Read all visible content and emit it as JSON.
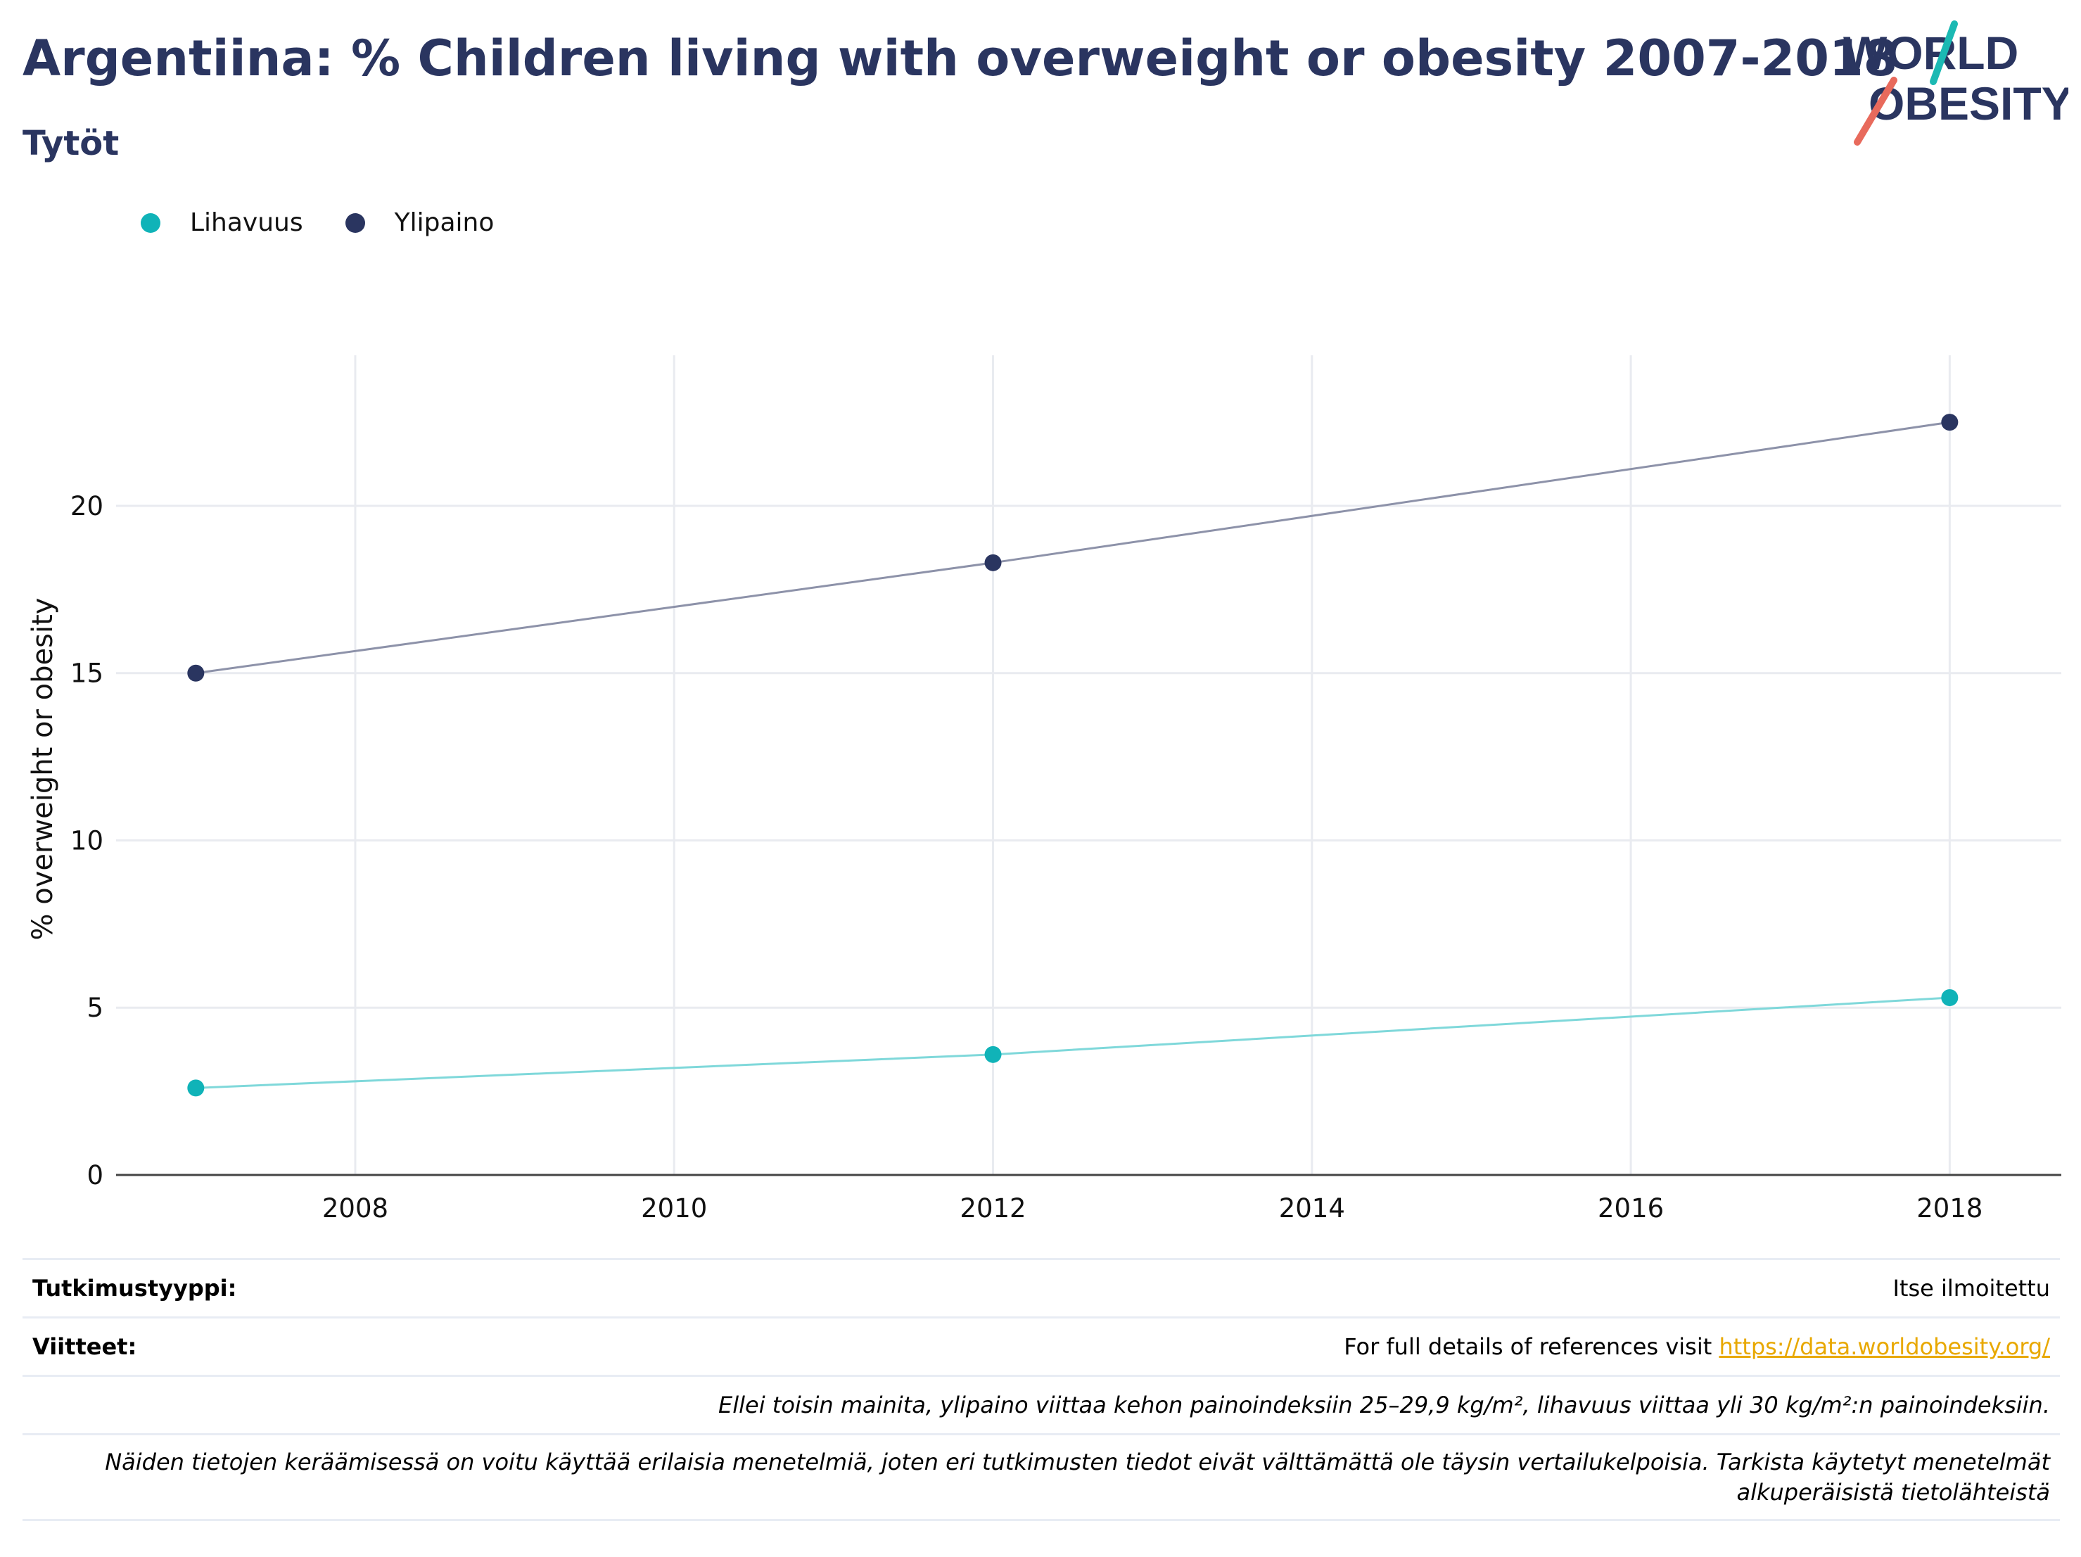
{
  "title": "Argentiina: % Children living with overweight or obesity 2007-2018",
  "subtitle": "Tytöt",
  "logo": {
    "line1": "WORLD",
    "line2": "OBESITY"
  },
  "colors": {
    "title": "#2a3560",
    "obesity": "#10b3b8",
    "overweight": "#2a3560",
    "link": "#e8a800"
  },
  "chart_data": {
    "type": "line",
    "x": [
      2007,
      2012,
      2018
    ],
    "series": [
      {
        "name": "Lihavuus",
        "color": "#10b3b8",
        "line_color": "#7fd8da",
        "values": [
          2.6,
          3.6,
          5.3
        ]
      },
      {
        "name": "Ylipaino",
        "color": "#2a3560",
        "line_color": "#8d92a9",
        "values": [
          15.0,
          18.3,
          22.5
        ]
      }
    ],
    "xlabel": "",
    "ylabel": "% overweight or obesity",
    "xlim": [
      2006.5,
      2018.7
    ],
    "ylim": [
      0,
      24.5
    ],
    "xticks": [
      2008,
      2010,
      2012,
      2014,
      2016,
      2018
    ],
    "yticks": [
      0,
      5,
      10,
      15,
      20
    ],
    "grid": true,
    "legend_position": "top-left"
  },
  "info": {
    "study_type_label": "Tutkimustyyppi:",
    "study_type_value": "Itse ilmoitettu",
    "references_label": "Viitteet:",
    "references_text": "For full details of references visit ",
    "references_link": "https://data.worldobesity.org/",
    "note1": "Ellei toisin mainita, ylipaino viittaa kehon painoindeksiin 25–29,9 kg/m², lihavuus viittaa yli 30 kg/m²:n painoindeksiin.",
    "note2_line1": "Näiden tietojen keräämisessä on voitu käyttää erilaisia menetelmiä, joten eri tutkimusten tiedot eivät välttämättä ole täysin vertailukelpoisia. Tarkista käytetyt menetelmät",
    "note2_line2": "alkuperäisistä tietolähteistä"
  }
}
